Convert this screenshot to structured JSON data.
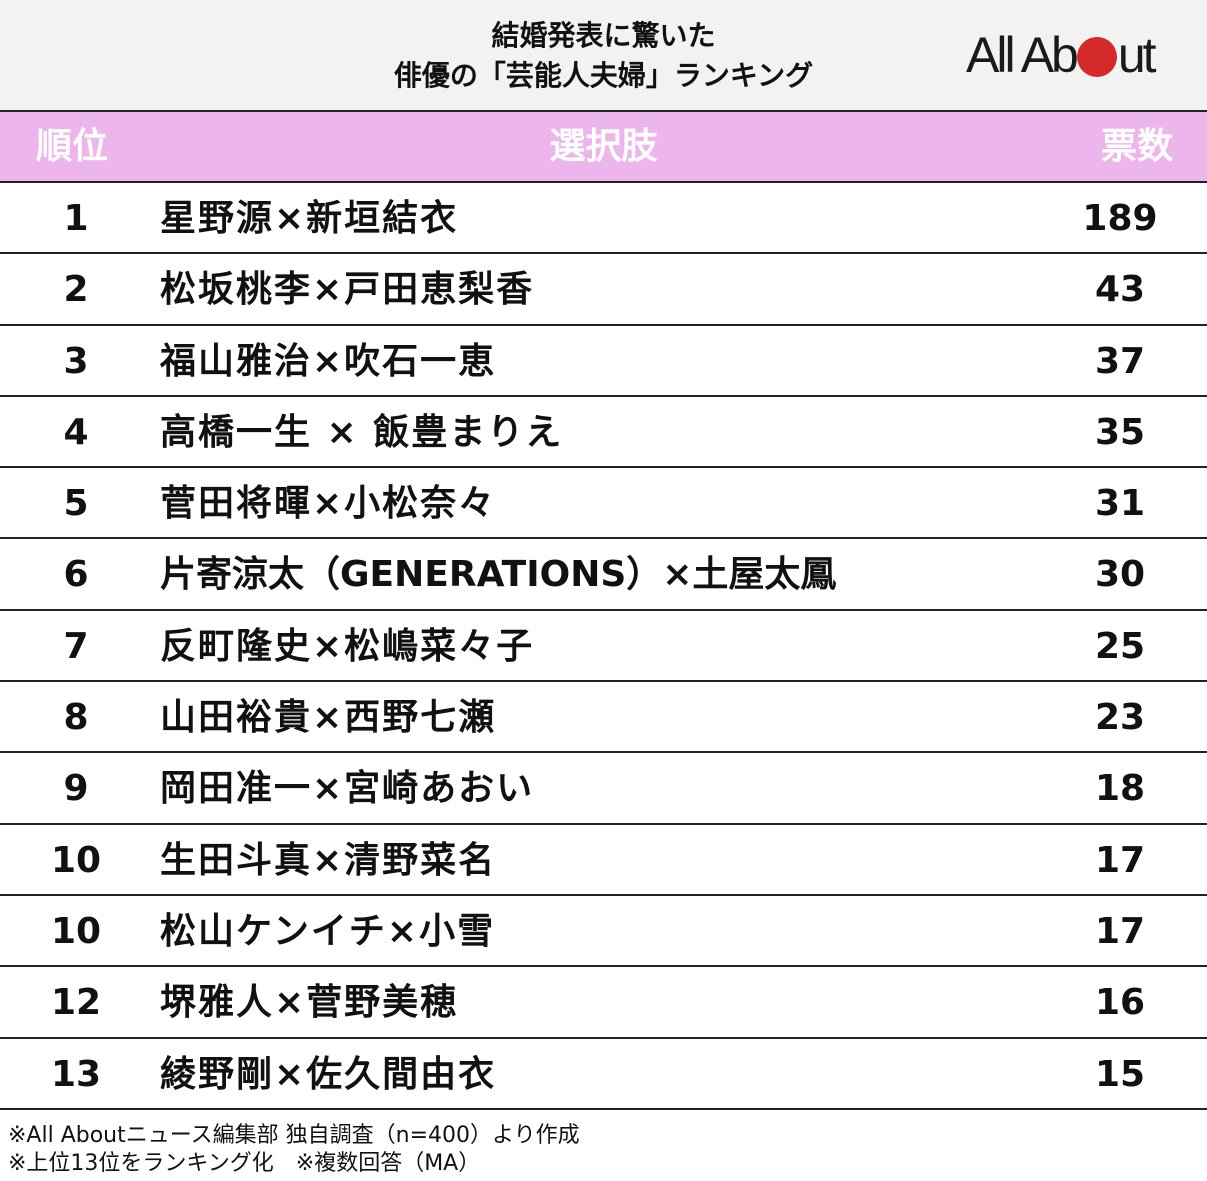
{
  "title": {
    "line1": "結婚発表に驚いた",
    "line2": "俳優の「芸能人夫婦」ランキング"
  },
  "logo": {
    "text_left": "All Ab",
    "text_right": "ut",
    "dot_color": "#d42a2a"
  },
  "colors": {
    "header_bg": "#ecb6ec",
    "title_bg": "#f2f2f2",
    "header_text": "#ffffff"
  },
  "table": {
    "headers": {
      "rank": "順位",
      "choice": "選択肢",
      "votes": "票数"
    },
    "rows": [
      {
        "rank": "1",
        "choice": "星野源×新垣結衣",
        "votes": "189"
      },
      {
        "rank": "2",
        "choice": "松坂桃李×戸田恵梨香",
        "votes": "43"
      },
      {
        "rank": "3",
        "choice": "福山雅治×吹石一恵",
        "votes": "37"
      },
      {
        "rank": "4",
        "choice": "高橋一生 × 飯豊まりえ",
        "votes": "35"
      },
      {
        "rank": "5",
        "choice": "菅田将暉×小松奈々",
        "votes": "31"
      },
      {
        "rank": "6",
        "choice": "片寄涼太（GENERATIONS）×土屋太鳳",
        "votes": "30"
      },
      {
        "rank": "7",
        "choice": "反町隆史×松嶋菜々子",
        "votes": "25"
      },
      {
        "rank": "8",
        "choice": "山田裕貴×西野七瀬",
        "votes": "23"
      },
      {
        "rank": "9",
        "choice": "岡田准一×宮崎あおい",
        "votes": "18"
      },
      {
        "rank": "10",
        "choice": "生田斗真×清野菜名",
        "votes": "17"
      },
      {
        "rank": "10",
        "choice": "松山ケンイチ×小雪",
        "votes": "17"
      },
      {
        "rank": "12",
        "choice": "堺雅人×菅野美穂",
        "votes": "16"
      },
      {
        "rank": "13",
        "choice": "綾野剛×佐久間由衣",
        "votes": "15"
      }
    ]
  },
  "notes": {
    "line1": "※All Aboutニュース編集部 独自調査（n=400）より作成",
    "line2": "※上位13位をランキング化　※複数回答（MA）"
  },
  "chart_data": {
    "type": "table",
    "title": "結婚発表に驚いた俳優の「芸能人夫婦」ランキング",
    "columns": [
      "順位",
      "選択肢",
      "票数"
    ],
    "categories": [
      "星野源×新垣結衣",
      "松坂桃李×戸田恵梨香",
      "福山雅治×吹石一恵",
      "高橋一生 × 飯豊まりえ",
      "菅田将暉×小松奈々",
      "片寄涼太（GENERATIONS）×土屋太鳳",
      "反町隆史×松嶋菜々子",
      "山田裕貴×西野七瀬",
      "岡田准一×宮崎あおい",
      "生田斗真×清野菜名",
      "松山ケンイチ×小雪",
      "堺雅人×菅野美穂",
      "綾野剛×佐久間由衣"
    ],
    "ranks": [
      1,
      2,
      3,
      4,
      5,
      6,
      7,
      8,
      9,
      10,
      10,
      12,
      13
    ],
    "values": [
      189,
      43,
      37,
      35,
      31,
      30,
      25,
      23,
      18,
      17,
      17,
      16,
      15
    ],
    "sample_size": 400
  }
}
